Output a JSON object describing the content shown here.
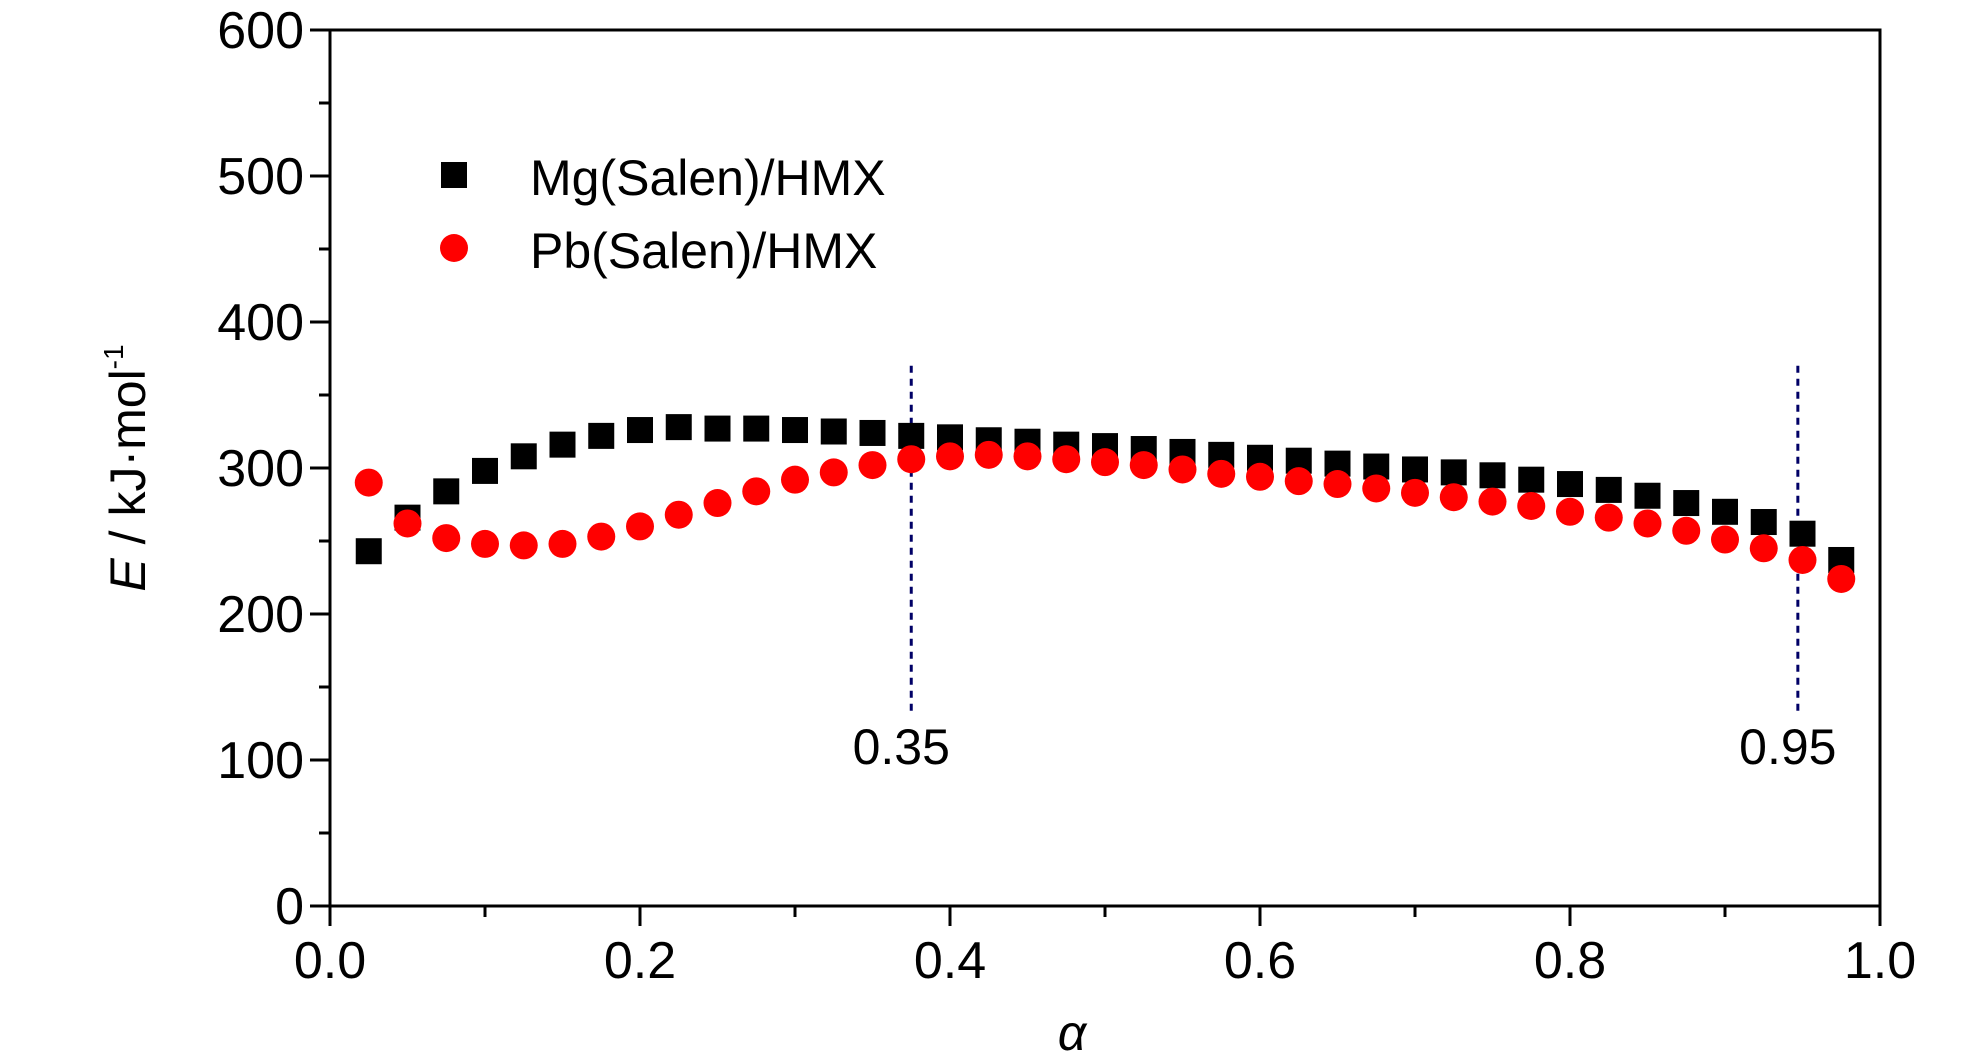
{
  "chart_data": {
    "type": "scatter",
    "xlabel": "α",
    "ylabel": {
      "italic": "E",
      "rest": " / kJ·mol",
      "sup": "-1"
    },
    "xlim": [
      0.0,
      1.0
    ],
    "ylim": [
      0,
      600
    ],
    "x_ticks": [
      0.0,
      0.2,
      0.4,
      0.6,
      0.8,
      1.0
    ],
    "x_tick_labels": [
      "0.0",
      "0.2",
      "0.4",
      "0.6",
      "0.8",
      "1.0"
    ],
    "y_ticks": [
      0,
      100,
      200,
      300,
      400,
      500,
      600
    ],
    "y_tick_labels": [
      "0",
      "100",
      "200",
      "300",
      "400",
      "500",
      "600"
    ],
    "grid": false,
    "legend_position": "top-left",
    "x": [
      0.025,
      0.05,
      0.075,
      0.1,
      0.125,
      0.15,
      0.175,
      0.2,
      0.225,
      0.25,
      0.275,
      0.3,
      0.325,
      0.35,
      0.375,
      0.4,
      0.425,
      0.45,
      0.475,
      0.5,
      0.525,
      0.55,
      0.575,
      0.6,
      0.625,
      0.65,
      0.675,
      0.7,
      0.725,
      0.75,
      0.775,
      0.8,
      0.825,
      0.85,
      0.875,
      0.9,
      0.925,
      0.95,
      0.975
    ],
    "series": [
      {
        "name": "Mg(Salen)/HMX",
        "marker": "square",
        "color": "#000000",
        "values": [
          243,
          266,
          284,
          298,
          308,
          316,
          322,
          326,
          328,
          327,
          327,
          326,
          325,
          324,
          322,
          321,
          319,
          318,
          316,
          315,
          313,
          311,
          309,
          307,
          305,
          303,
          301,
          299,
          297,
          295,
          292,
          289,
          285,
          281,
          276,
          270,
          263,
          255,
          237
        ]
      },
      {
        "name": "Pb(Salen)/HMX",
        "marker": "circle",
        "color": "#ff0000",
        "values": [
          290,
          262,
          252,
          248,
          247,
          248,
          253,
          260,
          268,
          276,
          284,
          292,
          297,
          302,
          306,
          308,
          309,
          308,
          306,
          304,
          302,
          299,
          296,
          294,
          291,
          289,
          286,
          283,
          280,
          277,
          274,
          270,
          266,
          262,
          257,
          251,
          245,
          237,
          224
        ]
      }
    ],
    "reference_lines": [
      {
        "x": 0.375,
        "label": "0.35",
        "y_from": 130,
        "y_to": 370
      },
      {
        "x": 0.947,
        "label": "0.95",
        "y_from": 130,
        "y_to": 370
      }
    ],
    "line_color": "#000066"
  }
}
